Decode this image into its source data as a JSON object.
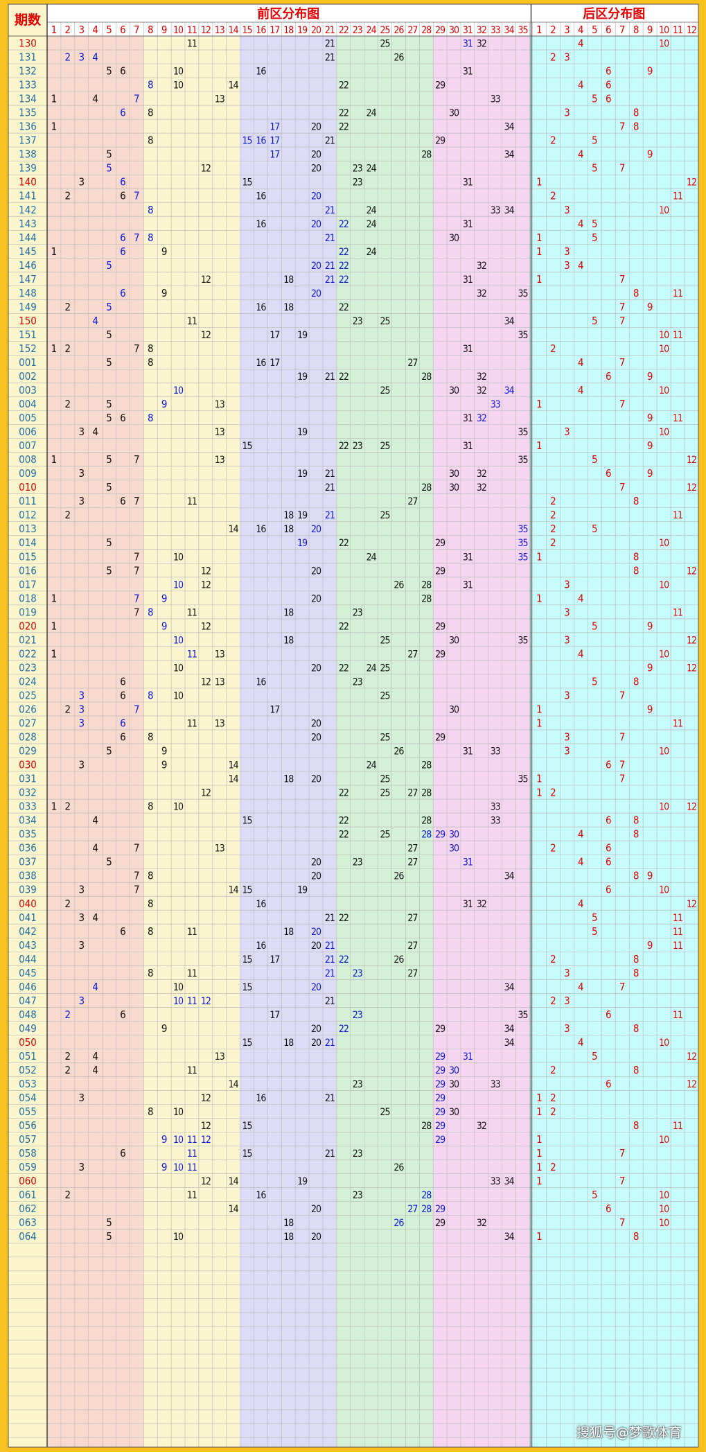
{
  "header": {
    "period_label": "期数",
    "front_title": "前区分布图",
    "back_title": "后区分布图"
  },
  "watermark": "搜狐号@梦歌体育",
  "colors": {
    "frame": "#f7c21f",
    "period_col": "#fdf6cd",
    "front_bands": [
      "#f8d9cd",
      "#fbf6cf",
      "#dcdcf7",
      "#d4f0d6",
      "#f6d5f0"
    ],
    "back_band": "#c6fcfb",
    "gridline": "#bcbcbc",
    "red": "#e30000",
    "blue": "#0a17d8",
    "black": "#111111",
    "teal": "#1e6fa8"
  },
  "chart_data": {
    "type": "table",
    "front_columns": [
      1,
      2,
      3,
      4,
      5,
      6,
      7,
      8,
      9,
      10,
      11,
      12,
      13,
      14,
      15,
      16,
      17,
      18,
      19,
      20,
      21,
      22,
      23,
      24,
      25,
      26,
      27,
      28,
      29,
      30,
      31,
      32,
      33,
      34,
      35
    ],
    "back_columns": [
      1,
      2,
      3,
      4,
      5,
      6,
      7,
      8,
      9,
      10,
      11,
      12
    ],
    "rows": [
      {
        "p": "130",
        "f": [
          11,
          21,
          25,
          31,
          32
        ],
        "b": [
          4,
          10
        ],
        "bl": [
          31
        ]
      },
      {
        "p": "131",
        "f": [
          2,
          3,
          4,
          21,
          26
        ],
        "b": [
          2,
          3
        ],
        "bl": [
          2,
          3,
          4
        ]
      },
      {
        "p": "132",
        "f": [
          5,
          6,
          10,
          16,
          31
        ],
        "b": [
          6,
          9
        ]
      },
      {
        "p": "133",
        "f": [
          8,
          10,
          14,
          22,
          29
        ],
        "b": [
          4,
          6
        ],
        "bl": [
          8
        ]
      },
      {
        "p": "134",
        "f": [
          1,
          4,
          7,
          13,
          33
        ],
        "b": [
          5,
          6
        ],
        "bl": [
          7
        ]
      },
      {
        "p": "135",
        "f": [
          6,
          8,
          22,
          24,
          30
        ],
        "b": [
          3,
          8
        ],
        "bl": [
          6
        ]
      },
      {
        "p": "136",
        "f": [
          1,
          17,
          20,
          22,
          34
        ],
        "b": [
          7,
          8
        ],
        "bl": [
          17
        ]
      },
      {
        "p": "137",
        "f": [
          8,
          15,
          16,
          17,
          21,
          29
        ],
        "b": [
          2,
          5
        ],
        "bl": [
          15,
          16,
          17
        ]
      },
      {
        "p": "138",
        "f": [
          5,
          17,
          20,
          28,
          34
        ],
        "b": [
          4,
          9
        ],
        "bl": [
          17
        ]
      },
      {
        "p": "139",
        "f": [
          5,
          12,
          20,
          23,
          24
        ],
        "b": [
          5,
          7
        ],
        "bl": [
          5
        ]
      },
      {
        "p": "140",
        "f": [
          3,
          6,
          15,
          23,
          31
        ],
        "b": [
          1,
          12
        ],
        "bl": [
          6
        ]
      },
      {
        "p": "141",
        "f": [
          2,
          6,
          7,
          16,
          20
        ],
        "b": [
          2,
          11
        ],
        "bl": [
          7,
          20
        ]
      },
      {
        "p": "142",
        "f": [
          8,
          21,
          24,
          33,
          34
        ],
        "b": [
          3,
          10
        ],
        "bl": [
          8,
          21
        ]
      },
      {
        "p": "143",
        "f": [
          16,
          20,
          22,
          24,
          31
        ],
        "b": [
          4,
          5
        ],
        "bl": [
          20,
          22
        ]
      },
      {
        "p": "144",
        "f": [
          6,
          7,
          8,
          21,
          30
        ],
        "b": [
          1,
          5
        ],
        "bl": [
          6,
          7,
          8,
          21
        ]
      },
      {
        "p": "145",
        "f": [
          1,
          6,
          9,
          22,
          24
        ],
        "b": [
          1,
          3
        ],
        "bl": [
          6,
          22
        ]
      },
      {
        "p": "146",
        "f": [
          5,
          20,
          21,
          22,
          32
        ],
        "b": [
          3,
          4
        ],
        "bl": [
          5,
          20,
          21,
          22
        ]
      },
      {
        "p": "147",
        "f": [
          12,
          18,
          21,
          22,
          31
        ],
        "b": [
          1,
          7
        ],
        "bl": [
          21,
          22
        ]
      },
      {
        "p": "148",
        "f": [
          6,
          9,
          20,
          32,
          35
        ],
        "b": [
          8,
          11
        ],
        "bl": [
          6,
          20
        ]
      },
      {
        "p": "149",
        "f": [
          2,
          5,
          16,
          18,
          22
        ],
        "b": [
          7,
          9
        ],
        "bl": [
          5
        ]
      },
      {
        "p": "150",
        "f": [
          4,
          11,
          23,
          25,
          34
        ],
        "b": [
          5,
          7
        ],
        "bl": [
          4
        ]
      },
      {
        "p": "151",
        "f": [
          5,
          12,
          17,
          19,
          35
        ],
        "b": [
          10,
          11
        ]
      },
      {
        "p": "152",
        "f": [
          1,
          2,
          7,
          8,
          31
        ],
        "b": [
          2,
          10
        ]
      },
      {
        "p": "001",
        "f": [
          5,
          8,
          16,
          17,
          27
        ],
        "b": [
          4,
          7
        ]
      },
      {
        "p": "002",
        "f": [
          19,
          21,
          22,
          28,
          32
        ],
        "b": [
          6,
          9
        ]
      },
      {
        "p": "003",
        "f": [
          10,
          25,
          30,
          32,
          34
        ],
        "b": [
          4,
          10
        ],
        "bl": [
          10,
          34
        ]
      },
      {
        "p": "004",
        "f": [
          2,
          5,
          9,
          13,
          33
        ],
        "b": [
          1,
          7
        ],
        "bl": [
          9,
          33
        ]
      },
      {
        "p": "005",
        "f": [
          5,
          6,
          8,
          31,
          32
        ],
        "b": [
          9,
          11
        ],
        "bl": [
          8,
          32
        ]
      },
      {
        "p": "006",
        "f": [
          3,
          4,
          13,
          19,
          35
        ],
        "b": [
          3,
          10
        ]
      },
      {
        "p": "007",
        "f": [
          15,
          22,
          23,
          25,
          31
        ],
        "b": [
          1,
          9
        ]
      },
      {
        "p": "008",
        "f": [
          1,
          5,
          7,
          13,
          35
        ],
        "b": [
          5,
          12
        ]
      },
      {
        "p": "009",
        "f": [
          3,
          19,
          21,
          30,
          32
        ],
        "b": [
          6,
          9
        ]
      },
      {
        "p": "010",
        "f": [
          5,
          21,
          28,
          30,
          32
        ],
        "b": [
          7,
          12
        ]
      },
      {
        "p": "011",
        "f": [
          3,
          6,
          7,
          11,
          27
        ],
        "b": [
          2,
          8
        ]
      },
      {
        "p": "012",
        "f": [
          2,
          18,
          19,
          21,
          25
        ],
        "b": [
          2,
          11
        ],
        "bl": [
          21
        ]
      },
      {
        "p": "013",
        "f": [
          14,
          16,
          18,
          20,
          35
        ],
        "b": [
          2,
          5
        ],
        "bl": [
          20,
          35
        ]
      },
      {
        "p": "014",
        "f": [
          5,
          19,
          22,
          29,
          35
        ],
        "b": [
          2,
          10
        ],
        "bl": [
          19,
          35
        ]
      },
      {
        "p": "015",
        "f": [
          7,
          10,
          24,
          31,
          35
        ],
        "b": [
          1,
          8
        ],
        "bl": [
          35
        ]
      },
      {
        "p": "016",
        "f": [
          5,
          7,
          12,
          20,
          29
        ],
        "b": [
          8,
          12
        ]
      },
      {
        "p": "017",
        "f": [
          10,
          12,
          26,
          28,
          31
        ],
        "b": [
          3,
          10
        ],
        "bl": [
          10
        ]
      },
      {
        "p": "018",
        "f": [
          1,
          7,
          9,
          20,
          28
        ],
        "b": [
          1,
          4
        ],
        "bl": [
          7,
          9
        ]
      },
      {
        "p": "019",
        "f": [
          7,
          8,
          11,
          18,
          23
        ],
        "b": [
          3,
          11
        ],
        "bl": [
          8
        ]
      },
      {
        "p": "020",
        "f": [
          1,
          9,
          12,
          22,
          29
        ],
        "b": [
          5,
          9
        ],
        "bl": [
          9
        ]
      },
      {
        "p": "021",
        "f": [
          10,
          18,
          25,
          30,
          35
        ],
        "b": [
          3,
          12
        ],
        "bl": [
          10
        ]
      },
      {
        "p": "022",
        "f": [
          1,
          11,
          13,
          27,
          29
        ],
        "b": [
          4,
          10
        ],
        "bl": [
          11
        ]
      },
      {
        "p": "023",
        "f": [
          10,
          20,
          22,
          24,
          25
        ],
        "b": [
          9,
          12
        ]
      },
      {
        "p": "024",
        "f": [
          6,
          12,
          13,
          16,
          23
        ],
        "b": [
          5,
          8
        ]
      },
      {
        "p": "025",
        "f": [
          3,
          6,
          8,
          10,
          25
        ],
        "b": [
          3,
          7
        ],
        "bl": [
          3,
          8
        ]
      },
      {
        "p": "026",
        "f": [
          2,
          3,
          7,
          17,
          30
        ],
        "b": [
          1,
          9
        ],
        "bl": [
          3,
          7
        ]
      },
      {
        "p": "027",
        "f": [
          3,
          6,
          11,
          13,
          20
        ],
        "b": [
          1,
          11
        ],
        "bl": [
          3,
          6
        ]
      },
      {
        "p": "028",
        "f": [
          6,
          8,
          20,
          25,
          29
        ],
        "b": [
          3,
          7
        ]
      },
      {
        "p": "029",
        "f": [
          5,
          9,
          26,
          31,
          33
        ],
        "b": [
          3,
          10
        ]
      },
      {
        "p": "030",
        "f": [
          3,
          9,
          14,
          24,
          28
        ],
        "b": [
          6,
          7
        ]
      },
      {
        "p": "031",
        "f": [
          14,
          18,
          20,
          25,
          35
        ],
        "b": [
          1,
          7
        ]
      },
      {
        "p": "032",
        "f": [
          12,
          22,
          25,
          27,
          28
        ],
        "b": [
          1,
          2
        ]
      },
      {
        "p": "033",
        "f": [
          1,
          2,
          8,
          10,
          33
        ],
        "b": [
          10,
          12
        ]
      },
      {
        "p": "034",
        "f": [
          4,
          15,
          22,
          28,
          33
        ],
        "b": [
          6,
          8
        ]
      },
      {
        "p": "035",
        "f": [
          22,
          25,
          28,
          29,
          30
        ],
        "b": [
          4,
          8
        ],
        "bl": [
          28,
          29,
          30
        ]
      },
      {
        "p": "036",
        "f": [
          4,
          7,
          13,
          27,
          30
        ],
        "b": [
          2,
          6
        ],
        "bl": [
          30
        ]
      },
      {
        "p": "037",
        "f": [
          5,
          20,
          23,
          27,
          31
        ],
        "b": [
          4,
          6
        ],
        "bl": [
          31
        ]
      },
      {
        "p": "038",
        "f": [
          7,
          8,
          20,
          26,
          34
        ],
        "b": [
          8,
          9
        ]
      },
      {
        "p": "039",
        "f": [
          3,
          7,
          14,
          15,
          19
        ],
        "b": [
          6,
          10
        ]
      },
      {
        "p": "040",
        "f": [
          2,
          8,
          16,
          31,
          32
        ],
        "b": [
          4,
          12
        ]
      },
      {
        "p": "041",
        "f": [
          3,
          4,
          21,
          22,
          27
        ],
        "b": [
          5,
          11
        ]
      },
      {
        "p": "042",
        "f": [
          6,
          8,
          11,
          18,
          20
        ],
        "b": [
          5,
          11
        ],
        "bl": [
          20
        ]
      },
      {
        "p": "043",
        "f": [
          3,
          16,
          20,
          21,
          27
        ],
        "b": [
          9,
          11
        ],
        "bl": [
          21
        ]
      },
      {
        "p": "044",
        "f": [
          15,
          17,
          21,
          22,
          26
        ],
        "b": [
          2,
          8
        ],
        "bl": [
          21,
          22
        ]
      },
      {
        "p": "045",
        "f": [
          8,
          11,
          21,
          23,
          27
        ],
        "b": [
          3,
          8
        ],
        "bl": [
          21,
          23
        ]
      },
      {
        "p": "046",
        "f": [
          4,
          10,
          15,
          20,
          34
        ],
        "b": [
          4,
          7
        ],
        "bl": [
          4,
          20
        ]
      },
      {
        "p": "047",
        "f": [
          3,
          10,
          11,
          12,
          21
        ],
        "b": [
          2,
          3
        ],
        "bl": [
          3,
          10,
          11,
          12
        ]
      },
      {
        "p": "048",
        "f": [
          2,
          6,
          17,
          23,
          35
        ],
        "b": [
          6,
          11
        ],
        "bl": [
          2,
          23
        ]
      },
      {
        "p": "049",
        "f": [
          9,
          20,
          22,
          29,
          34
        ],
        "b": [
          3,
          8
        ],
        "bl": [
          22
        ]
      },
      {
        "p": "050",
        "f": [
          15,
          18,
          20,
          21,
          34
        ],
        "b": [
          4,
          10
        ],
        "bl": [
          21
        ]
      },
      {
        "p": "051",
        "f": [
          2,
          4,
          13,
          29,
          31
        ],
        "b": [
          5,
          12
        ],
        "bl": [
          29,
          31
        ]
      },
      {
        "p": "052",
        "f": [
          2,
          4,
          11,
          29,
          30
        ],
        "b": [
          2,
          8
        ],
        "bl": [
          29,
          30
        ]
      },
      {
        "p": "053",
        "f": [
          14,
          23,
          29,
          30,
          33
        ],
        "b": [
          6,
          12
        ],
        "bl": [
          29
        ]
      },
      {
        "p": "054",
        "f": [
          3,
          12,
          16,
          21,
          29
        ],
        "b": [
          1,
          2
        ],
        "bl": [
          29
        ]
      },
      {
        "p": "055",
        "f": [
          8,
          10,
          25,
          29,
          30
        ],
        "b": [
          1,
          2
        ],
        "bl": [
          29
        ]
      },
      {
        "p": "056",
        "f": [
          12,
          15,
          28,
          29,
          32
        ],
        "b": [
          8,
          11
        ],
        "bl": [
          29
        ]
      },
      {
        "p": "057",
        "f": [
          9,
          10,
          11,
          12,
          29
        ],
        "b": [
          1,
          10
        ],
        "bl": [
          9,
          10,
          11,
          12,
          29
        ]
      },
      {
        "p": "058",
        "f": [
          6,
          11,
          15,
          21,
          23
        ],
        "b": [
          1,
          7
        ],
        "bl": [
          11
        ]
      },
      {
        "p": "059",
        "f": [
          3,
          9,
          10,
          11,
          26
        ],
        "b": [
          1,
          2
        ],
        "bl": [
          9,
          10,
          11
        ]
      },
      {
        "p": "060",
        "f": [
          12,
          14,
          19,
          33,
          34
        ],
        "b": [
          1,
          7
        ]
      },
      {
        "p": "061",
        "f": [
          2,
          11,
          16,
          23,
          28
        ],
        "b": [
          5,
          10
        ],
        "bl": [
          28
        ]
      },
      {
        "p": "062",
        "f": [
          14,
          20,
          27,
          28,
          29
        ],
        "b": [
          6,
          10
        ],
        "bl": [
          27,
          28,
          29
        ]
      },
      {
        "p": "063",
        "f": [
          5,
          18,
          26,
          29,
          32
        ],
        "b": [
          7,
          10
        ],
        "bl": [
          26
        ]
      },
      {
        "p": "064",
        "f": [
          5,
          10,
          18,
          20,
          34
        ],
        "b": [
          1,
          8
        ]
      }
    ]
  }
}
